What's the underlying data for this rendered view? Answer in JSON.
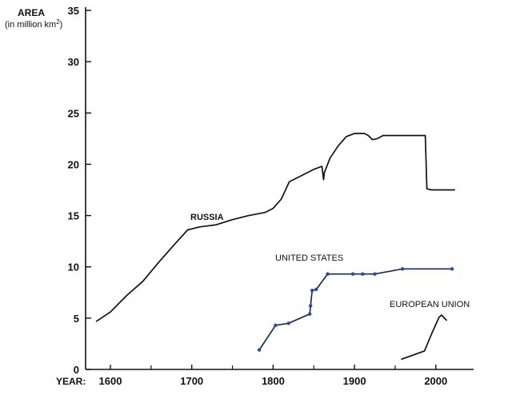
{
  "chart_data": {
    "type": "line",
    "ylabel": "AREA",
    "ylabel_unit": "(in million km",
    "ylabel_unit_sup": "2",
    "ylabel_unit_end": ")",
    "xlabel": "YEAR:",
    "xlim": [
      1575,
      2030
    ],
    "ylim": [
      0,
      35
    ],
    "x_ticks": [
      1600,
      1700,
      1800,
      1900,
      2000
    ],
    "x_minor_ticks": [
      1650,
      1750,
      1850,
      1950
    ],
    "y_ticks": [
      0,
      5,
      10,
      15,
      20,
      25,
      30,
      35
    ],
    "grid": false,
    "series": [
      {
        "name": "RUSSIA",
        "color": "#111111",
        "markers": false,
        "points": [
          [
            1583,
            4.7
          ],
          [
            1600,
            5.6
          ],
          [
            1620,
            7.2
          ],
          [
            1640,
            8.6
          ],
          [
            1660,
            10.5
          ],
          [
            1680,
            12.3
          ],
          [
            1695,
            13.6
          ],
          [
            1710,
            13.9
          ],
          [
            1730,
            14.1
          ],
          [
            1750,
            14.6
          ],
          [
            1770,
            15.0
          ],
          [
            1790,
            15.3
          ],
          [
            1800,
            15.7
          ],
          [
            1810,
            16.6
          ],
          [
            1820,
            18.3
          ],
          [
            1830,
            18.7
          ],
          [
            1840,
            19.1
          ],
          [
            1850,
            19.5
          ],
          [
            1860,
            19.8
          ],
          [
            1862,
            18.5
          ],
          [
            1863,
            19.2
          ],
          [
            1870,
            20.6
          ],
          [
            1880,
            21.8
          ],
          [
            1890,
            22.7
          ],
          [
            1900,
            23.0
          ],
          [
            1912,
            23.0
          ],
          [
            1917,
            22.8
          ],
          [
            1922,
            22.4
          ],
          [
            1928,
            22.5
          ],
          [
            1935,
            22.8
          ],
          [
            1960,
            22.8
          ],
          [
            1987,
            22.8
          ],
          [
            1989,
            17.6
          ],
          [
            1995,
            17.5
          ],
          [
            2023,
            17.5
          ]
        ]
      },
      {
        "name": "UNITED STATES",
        "color": "#1a2a5a",
        "markers": true,
        "points": [
          [
            1783,
            1.9
          ],
          [
            1803,
            4.3
          ],
          [
            1819,
            4.5
          ],
          [
            1845,
            5.4
          ],
          [
            1846,
            6.2
          ],
          [
            1848,
            7.7
          ],
          [
            1853,
            7.8
          ],
          [
            1867,
            9.3
          ],
          [
            1898,
            9.3
          ],
          [
            1910,
            9.3
          ],
          [
            1925,
            9.3
          ],
          [
            1959,
            9.8
          ],
          [
            2020,
            9.8
          ]
        ]
      },
      {
        "name": "EUROPEAN UNION",
        "color": "#111111",
        "markers": false,
        "points": [
          [
            1958,
            1.0
          ],
          [
            1986,
            1.8
          ],
          [
            1995,
            3.5
          ],
          [
            2004,
            5.1
          ],
          [
            2007,
            5.3
          ],
          [
            2013,
            4.8
          ]
        ]
      }
    ]
  }
}
